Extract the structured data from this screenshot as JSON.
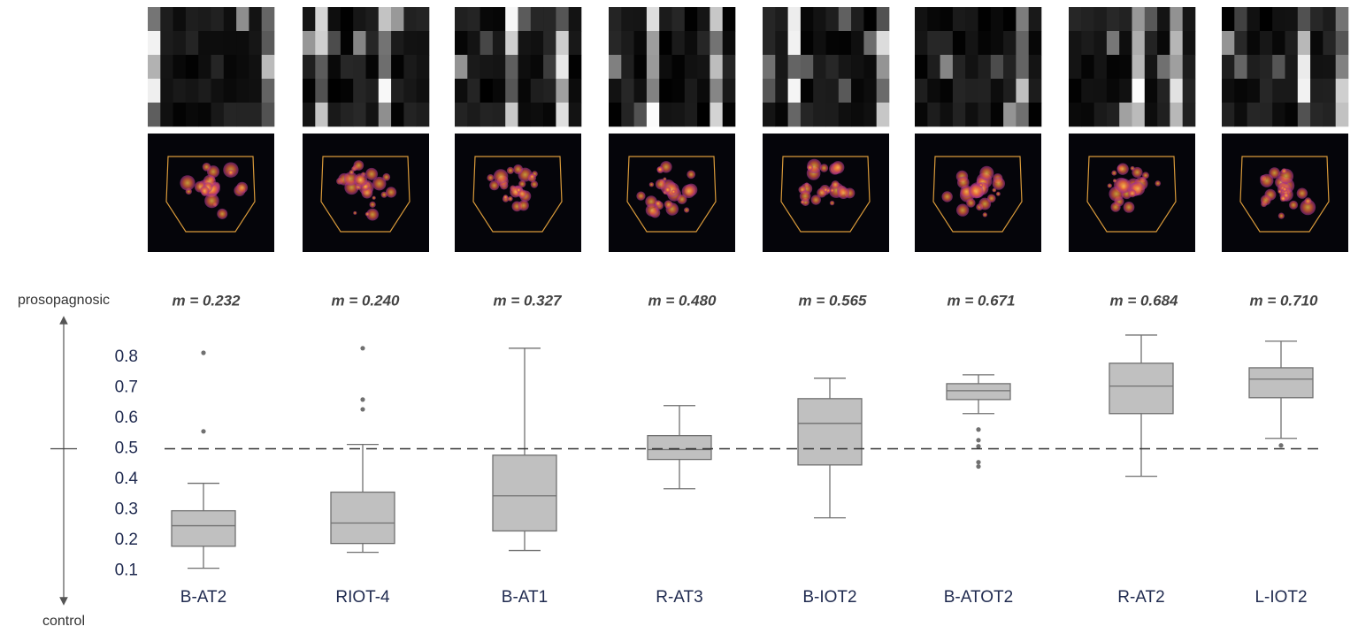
{
  "chart_data": {
    "type": "box",
    "y_label_top": "prosopagnosic",
    "y_label_bottom": "control",
    "categories": [
      "B-AT2",
      "RIOT-4",
      "B-AT1",
      "R-AT3",
      "B-IOT2",
      "B-ATOT2",
      "R-AT2",
      "L-IOT2"
    ],
    "annotations": [
      "m = 0.232",
      "m = 0.240",
      "m = 0.327",
      "m = 0.480",
      "m = 0.565",
      "m = 0.671",
      "m = 0.684",
      "m = 0.710"
    ],
    "boxes": [
      {
        "whisker_low": 0.109,
        "q1": 0.181,
        "median": 0.248,
        "q3": 0.297,
        "whisker_high": 0.387,
        "outliers": [
          0.814,
          0.557
        ]
      },
      {
        "whisker_low": 0.161,
        "q1": 0.19,
        "median": 0.257,
        "q3": 0.358,
        "whisker_high": 0.514,
        "outliers": [
          0.829,
          0.661,
          0.629
        ]
      },
      {
        "whisker_low": 0.167,
        "q1": 0.231,
        "median": 0.346,
        "q3": 0.479,
        "whisker_high": 0.829,
        "outliers": []
      },
      {
        "whisker_low": 0.369,
        "q1": 0.465,
        "median": 0.497,
        "q3": 0.543,
        "whisker_high": 0.641,
        "outliers": []
      },
      {
        "whisker_low": 0.274,
        "q1": 0.447,
        "median": 0.583,
        "q3": 0.664,
        "whisker_high": 0.731,
        "outliers": []
      },
      {
        "whisker_low": 0.615,
        "q1": 0.661,
        "median": 0.69,
        "q3": 0.713,
        "whisker_high": 0.742,
        "outliers": [
          0.563,
          0.528,
          0.508,
          0.456,
          0.442
        ]
      },
      {
        "whisker_low": 0.41,
        "q1": 0.615,
        "median": 0.705,
        "q3": 0.78,
        "whisker_high": 0.872,
        "outliers": []
      },
      {
        "whisker_low": 0.534,
        "q1": 0.667,
        "median": 0.728,
        "q3": 0.765,
        "whisker_high": 0.852,
        "outliers": [
          0.511
        ]
      }
    ],
    "color": "#c0c0c0",
    "reference_line": 0.5,
    "ylim": [
      0.05,
      0.95
    ],
    "yticks": [
      0.1,
      0.2,
      0.3,
      0.4,
      0.5,
      0.6,
      0.7,
      0.8
    ]
  }
}
